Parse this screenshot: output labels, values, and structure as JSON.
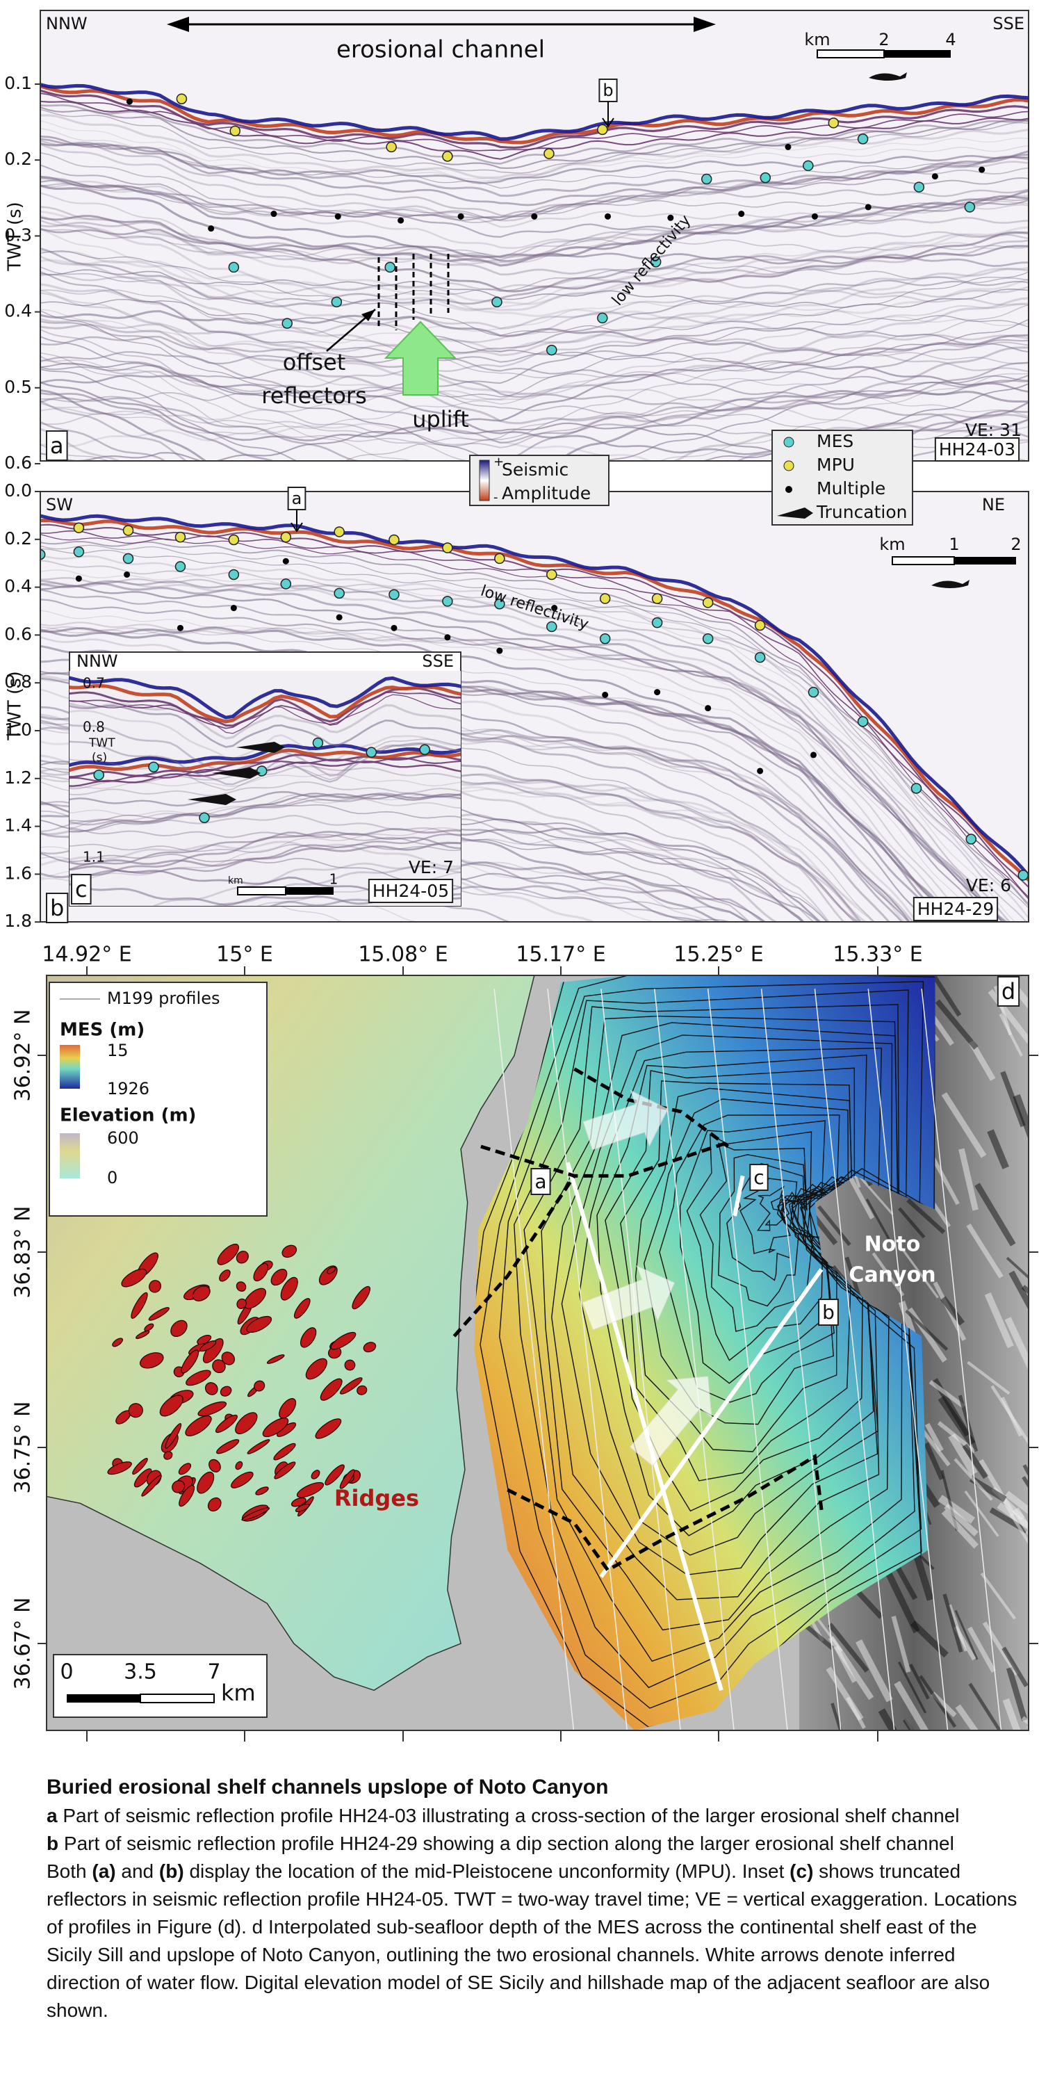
{
  "panel_a": {
    "left_label": "NNW",
    "right_label": "SSE",
    "channel_label": "erosional channel",
    "scale_unit": "km",
    "scale_ticks": [
      "2",
      "4"
    ],
    "profile_marker": "b",
    "yticks": [
      "0.1",
      "0.2",
      "0.3",
      "0.4",
      "0.5",
      "0.6"
    ],
    "y_label": "TWT (s)",
    "low_reflectivity": "low reflectivity",
    "offset_label": [
      "offset",
      "reflectors"
    ],
    "uplift": "uplift",
    "ve": "VE: 31",
    "profile": "HH24-03",
    "panel_letter": "a"
  },
  "legend": {
    "amplitude_title": [
      "Seismic",
      "Amplitude"
    ],
    "plus": "+",
    "minus": "-",
    "items": [
      "MES",
      "MPU",
      "Multiple",
      "Truncation"
    ]
  },
  "panel_b": {
    "left_label": "SW",
    "right_label": "NE",
    "profile_marker": "a",
    "yticks": [
      "0.0",
      "0.2",
      "0.4",
      "0.6",
      "0.8",
      "1.0",
      "1.2",
      "1.4",
      "1.6",
      "1.8"
    ],
    "y_label": "TWT (s)",
    "low_reflectivity": "low reflectivity",
    "scale_unit": "km",
    "scale_ticks": [
      "1",
      "2"
    ],
    "ve": "VE: 6",
    "profile": "HH24-29",
    "panel_letter": "b"
  },
  "inset_c": {
    "left_label": "NNW",
    "right_label": "SSE",
    "yticks": [
      "0.7",
      "0.8",
      "1.1"
    ],
    "y_label": [
      "TWT",
      "(s)"
    ],
    "scale_unit": "km",
    "scale_ticks": [
      "1"
    ],
    "ve": "VE: 7",
    "profile": "HH24-05",
    "panel_letter": "c"
  },
  "panel_d": {
    "longitudes": [
      "14.92° E",
      "15° E",
      "15.08° E",
      "15.17° E",
      "15.25° E",
      "15.33° E"
    ],
    "latitudes": [
      "36.92° N",
      "36.83° N",
      "36.75° N",
      "36.67° N"
    ],
    "legend": {
      "profiles": "M199 profiles",
      "mes_title": "MES (m)",
      "mes_range": [
        "15",
        "1926"
      ],
      "elevation_title": "Elevation (m)",
      "elevation_range": [
        "600",
        "0"
      ]
    },
    "profile_labels": [
      "a",
      "b",
      "c"
    ],
    "panel_letter": "d",
    "canyon_label": [
      "Noto",
      "Canyon"
    ],
    "ridges_label": "Ridges",
    "scale_ticks": [
      "0",
      "3.5",
      "7"
    ],
    "scale_unit": "km"
  },
  "caption": {
    "title": "Buried erosional shelf channels upslope of Noto Canyon",
    "paragraphs": [
      [
        {
          "text": "a",
          "bold": true
        },
        {
          "text": " Part of seismic reflection profile HH24-03 illustrating a cross-section of the larger erosional shelf channel"
        }
      ],
      [
        {
          "text": "b",
          "bold": true
        },
        {
          "text": " Part of seismic reflection profile HH24-29 showing a dip section along the larger erosional shelf channel"
        }
      ],
      [
        {
          "text": "Both "
        },
        {
          "text": "(a)",
          "bold": true
        },
        {
          "text": " and "
        },
        {
          "text": "(b)",
          "bold": true
        },
        {
          "text": " display the location of the mid-Pleistocene unconformity (MPU). Inset "
        },
        {
          "text": "(c)",
          "bold": true
        },
        {
          "text": " shows truncated reflectors in seismic reflection profile HH24-05. TWT = two-way travel time; VE = vertical exaggeration. Locations of profiles in Figure (d). d Interpolated sub-seafloor depth of the MES across the continental shelf east of the Sicily Sill and upslope of Noto Canyon, outlining the two erosional channels. White arrows denote inferred direction of water flow. Digital elevation model of SE Sicily and hillshade map of the adjacent seafloor are also shown."
        }
      ]
    ]
  }
}
